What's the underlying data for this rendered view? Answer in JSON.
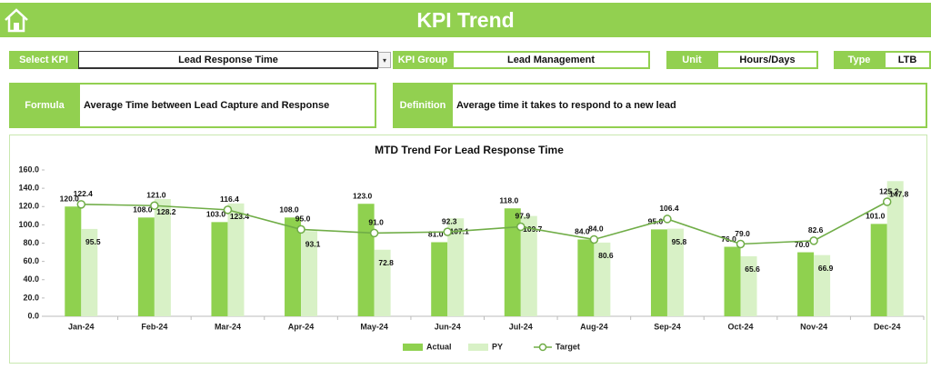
{
  "header": {
    "title": "KPI Trend"
  },
  "selectors": {
    "select_kpi_label": "Select KPI",
    "select_kpi_value": "Lead Response Time",
    "kpi_group_label": "KPI Group",
    "kpi_group_value": "Lead Management",
    "unit_label": "Unit",
    "unit_value": "Hours/Days",
    "type_label": "Type",
    "type_value": "LTB"
  },
  "info": {
    "formula_label": "Formula",
    "formula_text": "Average Time between Lead Capture and Response",
    "definition_label": "Definition",
    "definition_text": "Average time it takes to respond to a new lead"
  },
  "chart_data": {
    "type": "bar",
    "title": "MTD Trend For Lead Response Time",
    "categories": [
      "Jan-24",
      "Feb-24",
      "Mar-24",
      "Apr-24",
      "May-24",
      "Jun-24",
      "Jul-24",
      "Aug-24",
      "Sep-24",
      "Oct-24",
      "Nov-24",
      "Dec-24"
    ],
    "series": [
      {
        "name": "Actual",
        "type": "bar",
        "color": "#8fd14f",
        "values": [
          120,
          108,
          103,
          108,
          123,
          81,
          118,
          84,
          95,
          76,
          70,
          101
        ],
        "value_labels": [
          "120.0",
          "108.0",
          "103.0",
          "108.0",
          "123.0",
          "81.0",
          "118.0",
          "84.0",
          "95.0",
          "76.0",
          "70.0",
          "101.0"
        ]
      },
      {
        "name": "PY",
        "type": "bar",
        "color": "#d8f1c6",
        "values": [
          95.5,
          128.2,
          123.4,
          93.1,
          72.8,
          107.1,
          109.7,
          80.6,
          95.8,
          65.6,
          66.9,
          147.8
        ]
      },
      {
        "name": "Target",
        "type": "line",
        "color": "#70ad47",
        "values": [
          122.4,
          121,
          116.4,
          95,
          91,
          92.3,
          97.9,
          84,
          106.4,
          79,
          82.6,
          125.2
        ],
        "value_labels": [
          "122.4",
          "121.0",
          "116.4",
          "95.0",
          "91.0",
          "92.3",
          "97.9",
          "84.0",
          "106.4",
          "79.0",
          "82.6",
          "125.2"
        ]
      }
    ],
    "ylim": [
      0,
      160
    ],
    "yticks": [
      {
        "value": 0,
        "label": "0.0"
      },
      {
        "value": 20,
        "label": "20.0"
      },
      {
        "value": 40,
        "label": "40.0"
      },
      {
        "value": 60,
        "label": "60.0"
      },
      {
        "value": 80,
        "label": "80.0"
      },
      {
        "value": 100,
        "label": "100.0"
      },
      {
        "value": 120,
        "label": "120.0"
      },
      {
        "value": 140,
        "label": "140.0"
      },
      {
        "value": 160,
        "label": "160.0"
      }
    ],
    "grid": false,
    "legend": "bottom"
  }
}
